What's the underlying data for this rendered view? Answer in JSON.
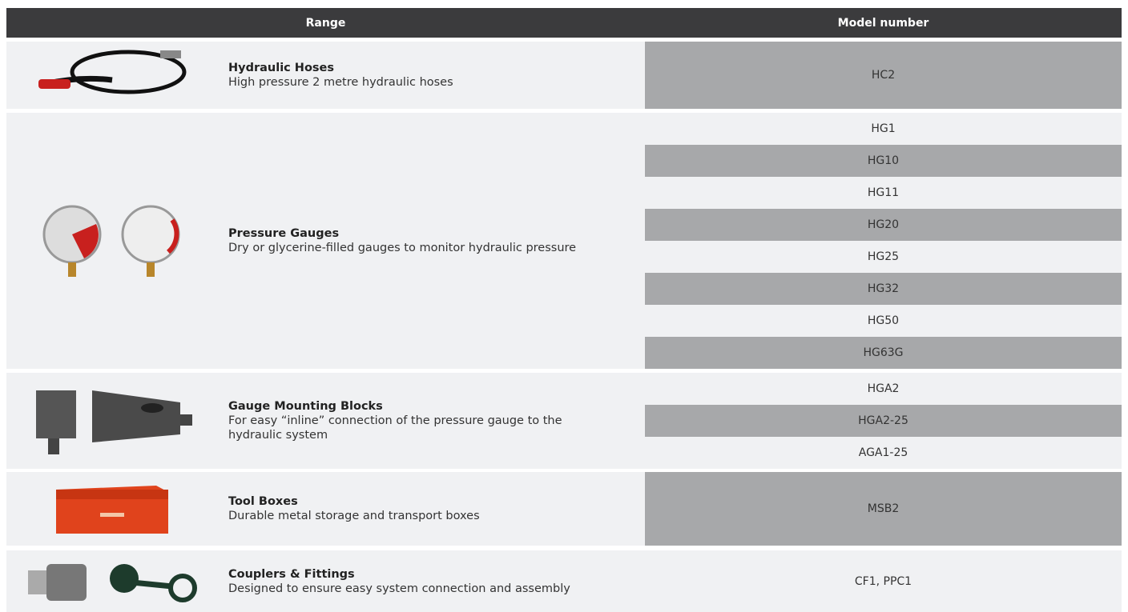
{
  "header": {
    "range": "Range",
    "model": "Model number"
  },
  "rows": [
    {
      "title": "Hydraulic Hoses",
      "description": "High pressure 2 metre hydraulic hoses",
      "models": [
        "HC2"
      ]
    },
    {
      "title": "Pressure Gauges",
      "description": "Dry or glycerine-filled gauges to monitor hydraulic pressure",
      "models": [
        "HG1",
        "HG10",
        "HG11",
        "HG20",
        "HG25",
        "HG32",
        "HG50",
        "HG63G"
      ]
    },
    {
      "title": "Gauge Mounting Blocks",
      "description": "For easy “inline” connection of the pressure gauge to the hydraulic system",
      "models": [
        "HGA2",
        "HGA2-25",
        "AGA1-25"
      ]
    },
    {
      "title": "Tool Boxes",
      "description": "Durable metal storage and transport boxes",
      "models": [
        "MSB2"
      ]
    },
    {
      "title": "Couplers & Fittings",
      "description": "Designed to ensure easy system connection and assembly",
      "models": [
        "CF1, PPC1"
      ]
    }
  ]
}
